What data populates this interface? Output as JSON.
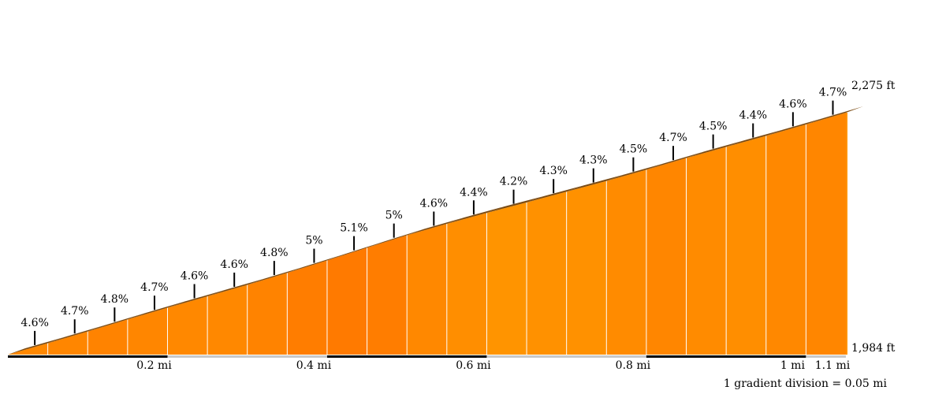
{
  "chart_data": {
    "type": "area",
    "title": "",
    "segment_length_mi": 0.05,
    "elevation_range_ft": [
      1984,
      2275
    ],
    "elevation_labels": {
      "top": "2,275 ft",
      "bottom": "1,984 ft"
    },
    "grades_pct": [
      4.6,
      4.7,
      4.8,
      4.7,
      4.6,
      4.6,
      4.8,
      5,
      5.1,
      5,
      4.6,
      4.4,
      4.2,
      4.3,
      4.3,
      4.5,
      4.7,
      4.5,
      4.4,
      4.6,
      4.7
    ],
    "grade_labels": [
      "4.6%",
      "4.7%",
      "4.8%",
      "4.7%",
      "4.6%",
      "4.6%",
      "4.8%",
      "5%",
      "5.1%",
      "5%",
      "4.6%",
      "4.4%",
      "4.2%",
      "4.3%",
      "4.3%",
      "4.5%",
      "4.7%",
      "4.5%",
      "4.4%",
      "4.6%",
      "4.7%"
    ],
    "distance_range_mi": [
      0,
      1.05
    ],
    "x_ticks": [
      {
        "value": 0.2,
        "label": "0.2 mi"
      },
      {
        "value": 0.4,
        "label": "0.4 mi"
      },
      {
        "value": 0.6,
        "label": "0.6 mi"
      },
      {
        "value": 0.8,
        "label": "0.8 mi"
      },
      {
        "value": 1.0,
        "label": "1 mi"
      },
      {
        "value": 1.05,
        "label": "1.1 mi"
      }
    ],
    "legend_note": "1 gradient division = 0.05 mi",
    "colors": {
      "fill_light": "#ff9400",
      "fill_dark": "#ff7a00",
      "top_band": "#7a4a12",
      "divider": "#ffffff",
      "axis_dark": "#000000",
      "axis_light": "#c8c8c8"
    }
  }
}
